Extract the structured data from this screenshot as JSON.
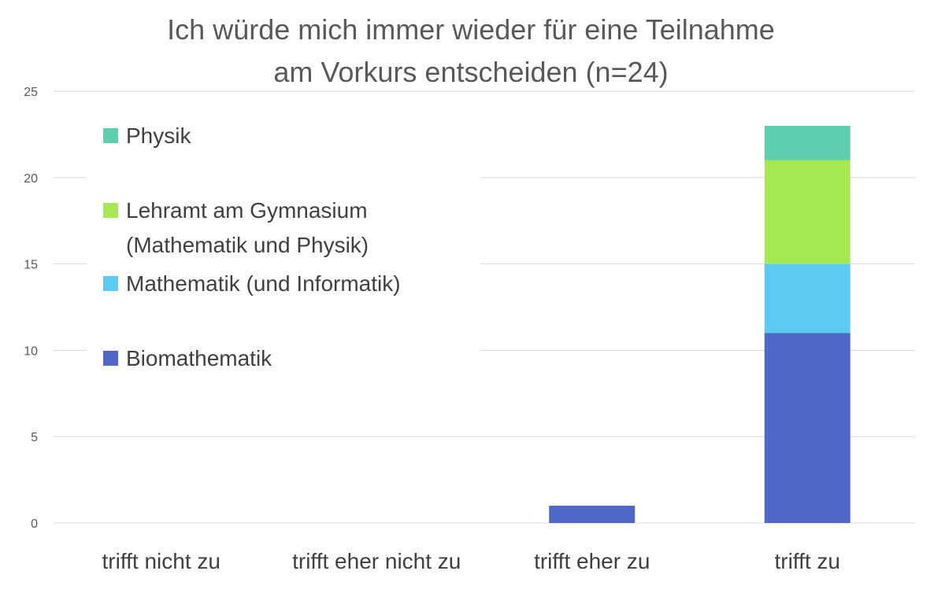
{
  "chart_data": {
    "type": "bar",
    "stacked": true,
    "title": [
      "Ich würde mich immer wieder für eine Teilnahme",
      "am Vorkurs entscheiden (n=24)"
    ],
    "xlabel": "",
    "ylabel": "",
    "ylim": [
      0,
      25
    ],
    "yticks": [
      0,
      5,
      10,
      15,
      20,
      25
    ],
    "grid": true,
    "legend_position": "top-left",
    "categories": [
      "trifft nicht zu",
      "trifft eher nicht zu",
      "trifft eher zu",
      "trifft zu"
    ],
    "series": [
      {
        "name": "Biomathematik",
        "color": "#4f67c7",
        "values": [
          0,
          0,
          1,
          11
        ]
      },
      {
        "name": "Mathematik (und Informatik)",
        "color": "#5bcbf2",
        "values": [
          0,
          0,
          0,
          4
        ]
      },
      {
        "name": "Lehramt am Gymnasium (Mathematik und Physik)",
        "legend_lines": [
          "Lehramt am Gymnasium",
          "(Mathematik und Physik)"
        ],
        "color": "#a5e852",
        "values": [
          0,
          0,
          0,
          6
        ]
      },
      {
        "name": "Physik",
        "color": "#5dcfae",
        "values": [
          0,
          0,
          0,
          2
        ]
      }
    ],
    "legend_order": [
      "Physik",
      "Lehramt am Gymnasium (Mathematik und Physik)",
      "Mathematik (und Informatik)",
      "Biomathematik"
    ]
  }
}
